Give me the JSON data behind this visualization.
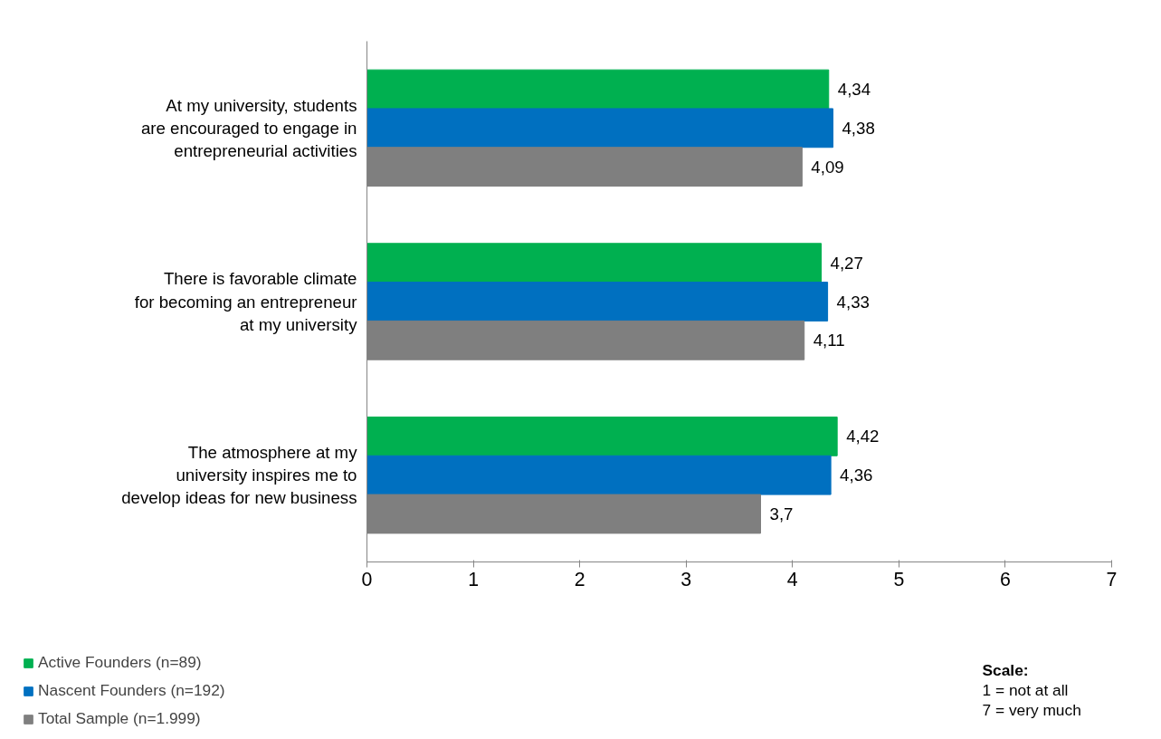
{
  "chart_data": {
    "type": "bar",
    "orientation": "horizontal",
    "categories": [
      "At my university, students\nare encouraged to engage in\nentrepreneurial activities",
      "There is favorable climate\nfor becoming an entrepreneur\nat my university",
      "The atmosphere at my\nuniversity inspires me to\ndevelop ideas for new business"
    ],
    "series": [
      {
        "name": "Active Founders (n=89)",
        "color": "#00b050",
        "values": [
          4.34,
          4.27,
          4.42
        ],
        "value_labels": [
          "4,34",
          "4,27",
          "4,42"
        ]
      },
      {
        "name": "Nascent Founders (n=192)",
        "color": "#0070c0",
        "values": [
          4.38,
          4.33,
          4.36
        ],
        "value_labels": [
          "4,38",
          "4,33",
          "4,36"
        ]
      },
      {
        "name": "Total Sample (n=1.999)",
        "color": "#7f7f7f",
        "values": [
          4.09,
          4.11,
          3.7
        ],
        "value_labels": [
          "4,09",
          "4,11",
          "3,7"
        ]
      }
    ],
    "xlim": [
      0,
      7
    ],
    "xticks": [
      0,
      1,
      2,
      3,
      4,
      5,
      6,
      7
    ],
    "grid": false,
    "legend": "bottom left",
    "annotations": [
      "Scale:",
      "1 = not at all",
      "7 = very much"
    ]
  }
}
